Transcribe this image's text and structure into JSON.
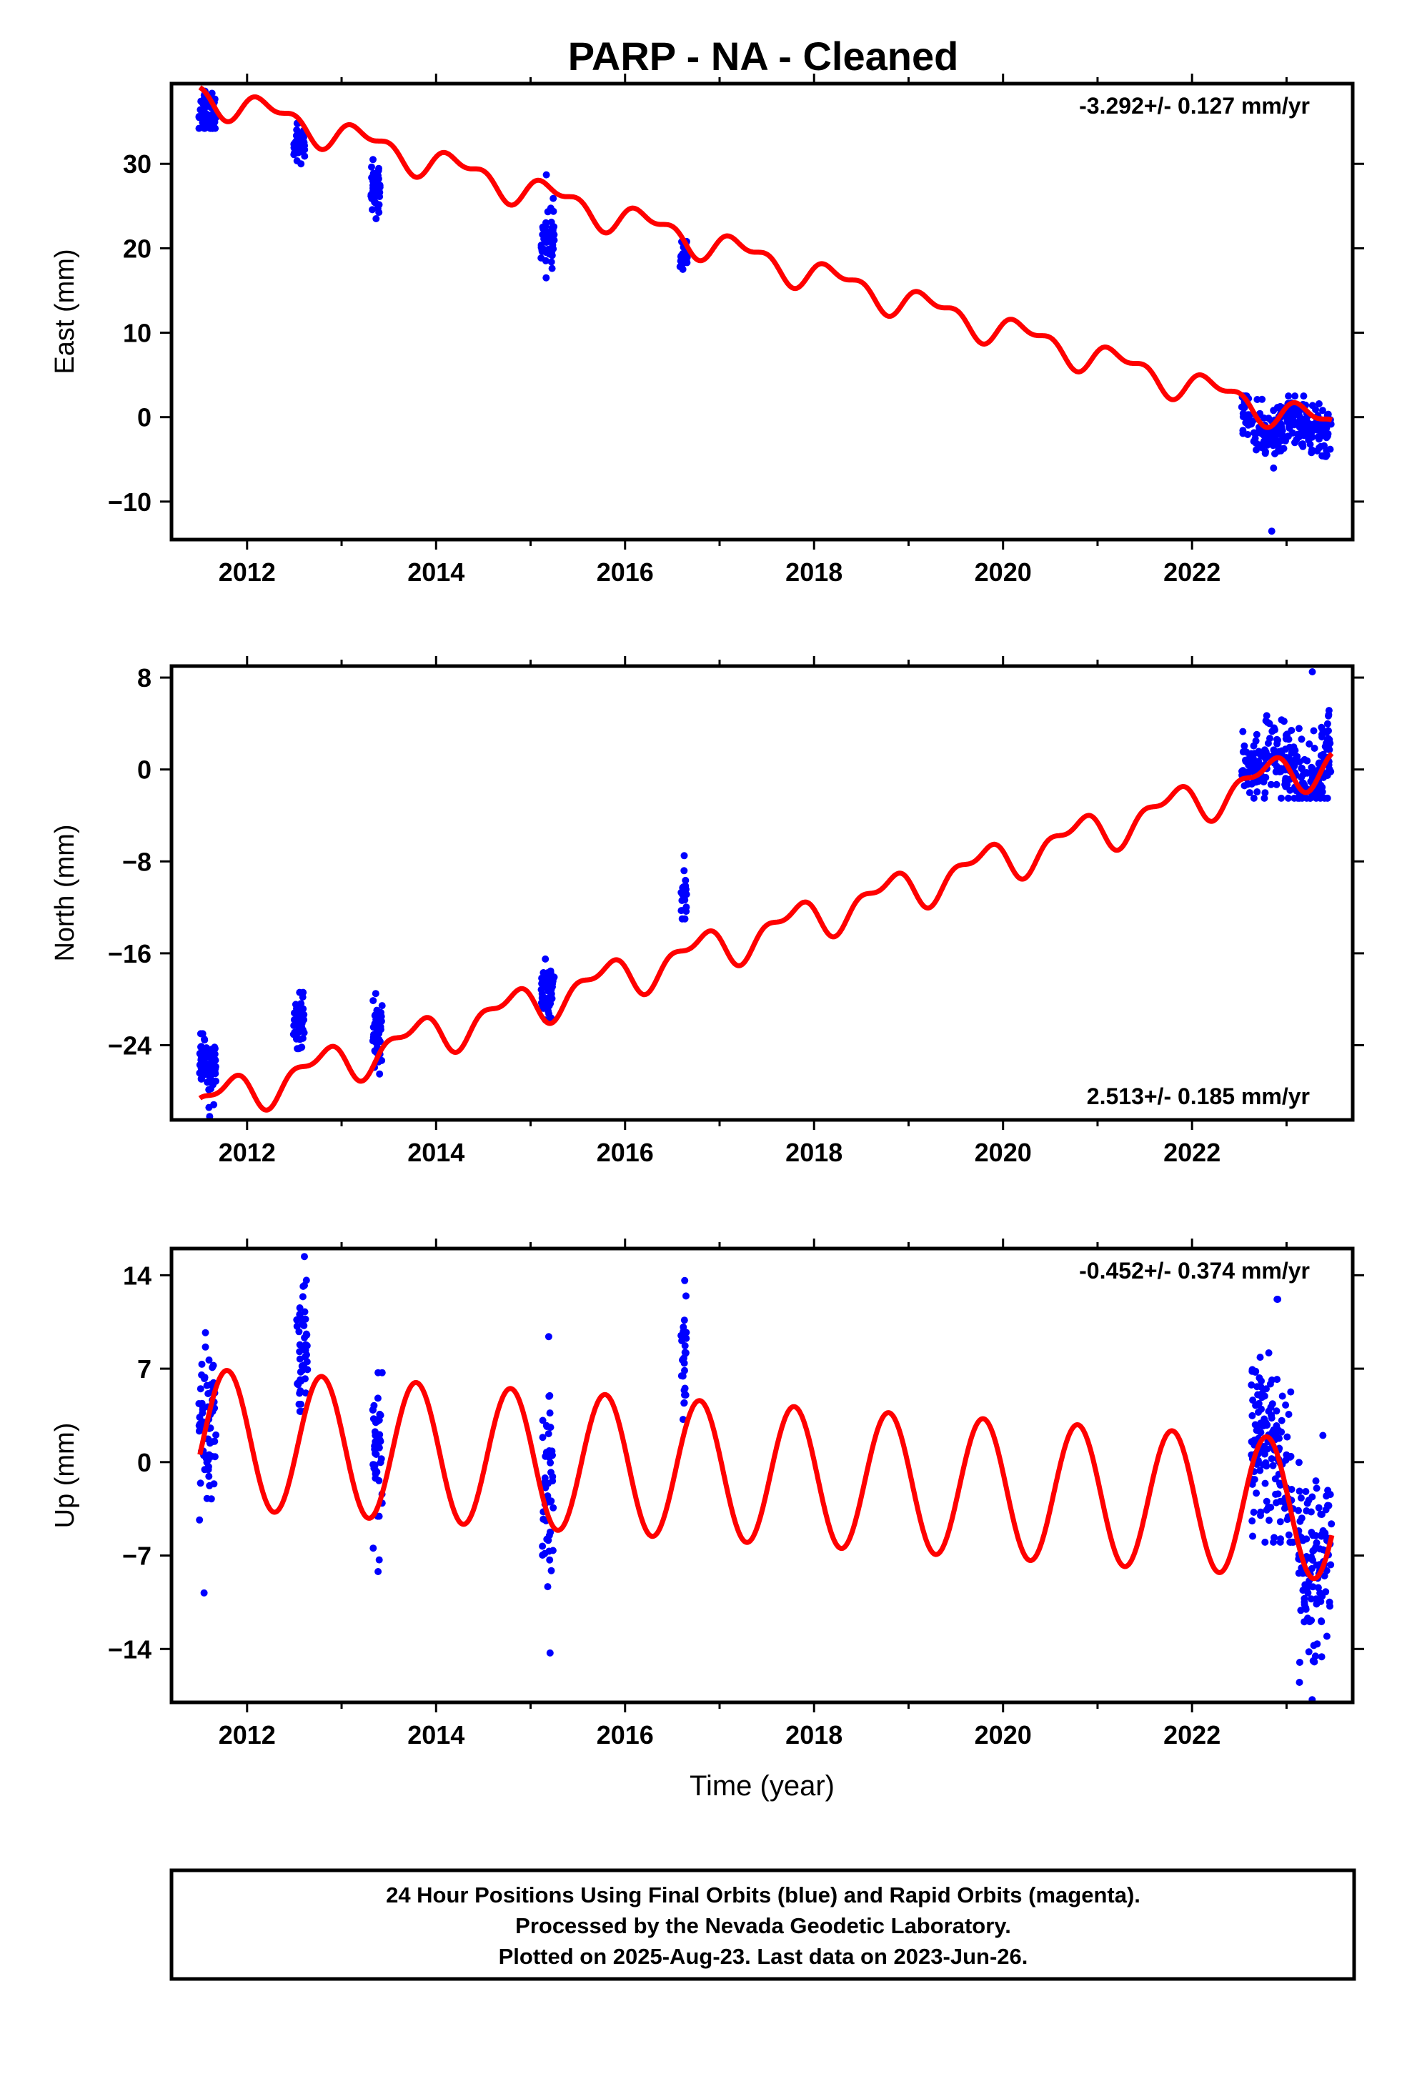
{
  "title": "PARP  - NA - Cleaned",
  "colors": {
    "points": "#0000ff",
    "model": "#ff0000",
    "frame": "#000000"
  },
  "chart_data": [
    {
      "type": "scatter",
      "ylabel": "East (mm)",
      "xlabel": "",
      "xlim": [
        2011.2,
        2023.7
      ],
      "ylim": [
        -14.5,
        39.5
      ],
      "yticks": [
        -10,
        0,
        10,
        20,
        30
      ],
      "ytick_labels": [
        "−10",
        "0",
        "10",
        "20",
        "30"
      ],
      "xticks": [
        2012,
        2014,
        2016,
        2018,
        2020,
        2022
      ],
      "rate_text": "-3.292+/- 0.127 mm/yr",
      "rate_position": "top-right",
      "model": {
        "intercept": 38.3,
        "rate": -3.292,
        "annual_amp": 1.5,
        "annual_phase": 0.0,
        "semi_amp": 0.9,
        "semi_phase": 1.0
      },
      "clusters": [
        {
          "t": 2011.58,
          "y": 36.0,
          "spread": 1.3,
          "width": 0.18,
          "n": 70,
          "min": 34.2,
          "max": 38.6
        },
        {
          "t": 2012.55,
          "y": 32.3,
          "spread": 1.1,
          "width": 0.12,
          "n": 45,
          "min": 30.0,
          "max": 34.8
        },
        {
          "t": 2013.36,
          "y": 27.0,
          "spread": 1.3,
          "width": 0.1,
          "n": 45,
          "min": 23.5,
          "max": 30.5
        },
        {
          "t": 2015.18,
          "y": 21.3,
          "spread": 1.6,
          "width": 0.14,
          "n": 55,
          "min": 16.5,
          "max": 28.7
        },
        {
          "t": 2016.62,
          "y": 19.2,
          "spread": 0.8,
          "width": 0.08,
          "n": 25,
          "min": 17.5,
          "max": 20.8
        },
        {
          "t": 2023.0,
          "y": -1.8,
          "spread": 1.4,
          "width": 0.95,
          "n": 260,
          "min": -13.5,
          "max": 2.5
        }
      ]
    },
    {
      "type": "scatter",
      "ylabel": "North (mm)",
      "xlabel": "",
      "xlim": [
        2011.2,
        2023.7
      ],
      "ylim": [
        -30.5,
        9.0
      ],
      "yticks": [
        -24,
        -16,
        -8,
        0,
        8
      ],
      "ytick_labels": [
        "−24",
        "−16",
        "−8",
        "0",
        "8"
      ],
      "xticks": [
        2012,
        2014,
        2016,
        2018,
        2020,
        2022
      ],
      "rate_text": "2.513+/- 0.185 mm/yr",
      "rate_position": "bottom-right",
      "model": {
        "intercept": -29.2,
        "rate": 2.513,
        "annual_amp": 1.5,
        "annual_phase": 3.1,
        "semi_amp": 0.8,
        "semi_phase": 2.2
      },
      "clusters": [
        {
          "t": 2011.58,
          "y": -26.0,
          "spread": 1.2,
          "width": 0.18,
          "n": 70,
          "min": -30.2,
          "max": -23.0
        },
        {
          "t": 2012.55,
          "y": -22.0,
          "spread": 1.2,
          "width": 0.12,
          "n": 40,
          "min": -24.3,
          "max": -19.4
        },
        {
          "t": 2013.38,
          "y": -22.8,
          "spread": 1.4,
          "width": 0.1,
          "n": 45,
          "min": -26.5,
          "max": -19.5
        },
        {
          "t": 2015.18,
          "y": -19.2,
          "spread": 1.0,
          "width": 0.14,
          "n": 50,
          "min": -21.8,
          "max": -16.5
        },
        {
          "t": 2016.62,
          "y": -11.5,
          "spread": 1.0,
          "width": 0.06,
          "n": 20,
          "min": -13.0,
          "max": -7.5
        },
        {
          "t": 2023.0,
          "y": 1.8,
          "spread": 1.6,
          "width": 0.95,
          "n": 260,
          "min": -2.5,
          "max": 8.5
        }
      ]
    },
    {
      "type": "scatter",
      "ylabel": "Up (mm)",
      "xlabel": "Time (year)",
      "xlim": [
        2011.2,
        2023.7
      ],
      "ylim": [
        -18.0,
        16.0
      ],
      "yticks": [
        -14,
        -7,
        0,
        7,
        14
      ],
      "ytick_labels": [
        "−14",
        "−7",
        "0",
        "7",
        "14"
      ],
      "xticks": [
        2012,
        2014,
        2016,
        2018,
        2020,
        2022
      ],
      "rate_text": "-0.452+/- 0.374 mm/yr",
      "rate_position": "top-right",
      "model": {
        "intercept": 1.8,
        "rate": -0.452,
        "annual_amp": 5.2,
        "annual_phase": 2.9,
        "semi_amp": 0.0,
        "semi_phase": 0.0
      },
      "clusters": [
        {
          "t": 2011.58,
          "y": 1.5,
          "spread": 3.2,
          "width": 0.18,
          "n": 70,
          "min": -9.8,
          "max": 9.7
        },
        {
          "t": 2012.58,
          "y": 9.0,
          "spread": 2.4,
          "width": 0.12,
          "n": 45,
          "min": 3.8,
          "max": 15.4
        },
        {
          "t": 2013.38,
          "y": 0.5,
          "spread": 3.2,
          "width": 0.1,
          "n": 45,
          "min": -8.2,
          "max": 6.7
        },
        {
          "t": 2015.18,
          "y": -3.0,
          "spread": 3.5,
          "width": 0.12,
          "n": 50,
          "min": -14.3,
          "max": 9.4
        },
        {
          "t": 2016.62,
          "y": 7.5,
          "spread": 2.4,
          "width": 0.06,
          "n": 25,
          "min": 3.2,
          "max": 13.6
        },
        {
          "t": 2022.85,
          "y": 2.5,
          "spread": 3.5,
          "width": 0.45,
          "n": 150,
          "min": -6.0,
          "max": 12.2
        },
        {
          "t": 2023.3,
          "y": -7.5,
          "spread": 3.2,
          "width": 0.35,
          "n": 120,
          "min": -17.8,
          "max": 2.0
        }
      ]
    }
  ],
  "footer": {
    "line1": "24 Hour Positions Using Final Orbits (blue) and Rapid Orbits (magenta).",
    "line2": "Processed by the Nevada Geodetic Laboratory.",
    "line3": "Plotted on 2025-Aug-23. Last data on 2023-Jun-26."
  }
}
